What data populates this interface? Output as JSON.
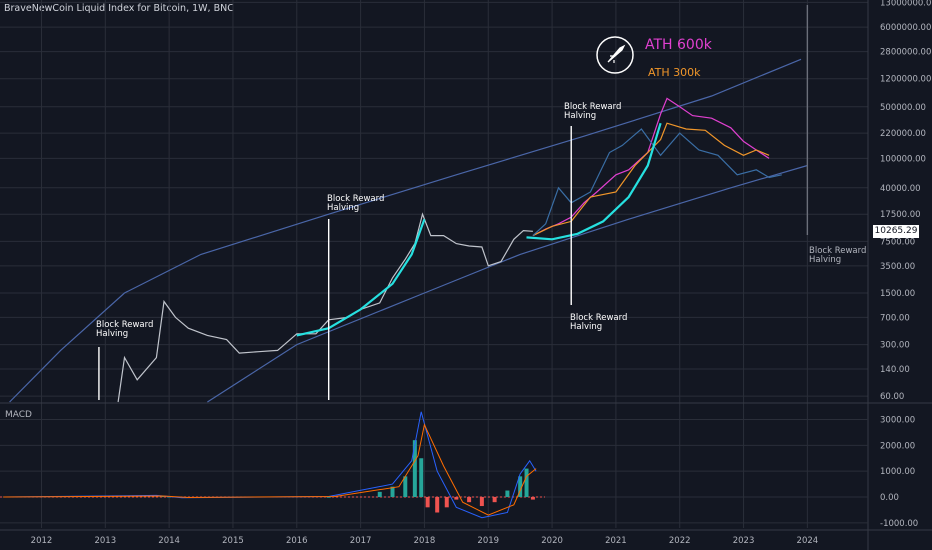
{
  "header": {
    "title": "BraveNewCoin Liquid Index for Bitcoin, 1W, BNC"
  },
  "indicator": {
    "label": "MACD"
  },
  "current_price": "10265.29",
  "colors": {
    "background": "#131722",
    "grid": "#2a2e39",
    "channel": "#4a66a8",
    "projection_pink": "#e040d0",
    "projection_orange": "#f0962a",
    "projection_blue": "#3a6ea5",
    "fit_curve": "#26e0e0",
    "macd_line": "#2962ff",
    "signal_line": "#ff6d00",
    "hist_up": "#26a69a",
    "hist_down": "#ef5350"
  },
  "annotations": [
    {
      "lines": [
        "Block Reward",
        "Halving"
      ],
      "year": 2012.9
    },
    {
      "lines": [
        "Block Reward",
        "Halving"
      ],
      "year": 2016.5
    },
    {
      "lines": [
        "Block Reward",
        "Halving"
      ],
      "year": 2020.3
    },
    {
      "lines": [
        "Block Reward",
        "Halving"
      ],
      "year": 2020.3
    },
    {
      "lines": [
        "Block Reward",
        "Halving"
      ],
      "year": 2024.0
    }
  ],
  "legend": {
    "ath_600k": "ATH 600k",
    "ath_300k": "ATH 300k",
    "icon": "rocket-icon"
  },
  "chart_data": [
    {
      "type": "line",
      "title": "BraveNewCoin Liquid Index for Bitcoin, 1W, BNC",
      "xlabel": "",
      "ylabel": "",
      "scale": "log",
      "x_ticks": [
        "2012",
        "2013",
        "2014",
        "2015",
        "2016",
        "2017",
        "2018",
        "2019",
        "2020",
        "2021",
        "2022",
        "2023",
        "2024"
      ],
      "y_ticks": [
        "60.00",
        "140.00",
        "300.00",
        "700.00",
        "1500.00",
        "3500.00",
        "7500.00",
        "17500.00",
        "40000.00",
        "100000.00",
        "220000.00",
        "500000.00",
        "1200000.00",
        "2800000.00",
        "6000000.00",
        "13000000.00"
      ],
      "ylim": [
        50,
        14000000
      ],
      "xlim": [
        2011.35,
        2024.95
      ],
      "grid": true,
      "series": [
        {
          "x": [
            2013.2,
            2013.3,
            2013.5,
            2013.8,
            2013.92,
            2014.1,
            2014.3,
            2014.6,
            2014.9,
            2015.1,
            2015.4,
            2015.7,
            2016.0,
            2016.3,
            2016.5,
            2016.8,
            2017.0,
            2017.3,
            2017.5,
            2017.7,
            2017.85,
            2017.97,
            2018.1,
            2018.3,
            2018.5,
            2018.7,
            2018.9,
            2019.0,
            2019.2,
            2019.4,
            2019.55,
            2019.7
          ],
          "values": [
            50,
            200,
            100,
            200,
            1150,
            700,
            500,
            400,
            350,
            230,
            240,
            250,
            420,
            420,
            650,
            700,
            900,
            1100,
            2400,
            4300,
            7000,
            17500,
            9000,
            9000,
            7000,
            6500,
            6300,
            3500,
            4000,
            8000,
            10500,
            10265
          ]
        },
        {
          "x": [
            2019.7,
            2019.9,
            2020.1,
            2020.3,
            2020.5,
            2020.7,
            2021.0,
            2021.2,
            2021.5,
            2021.7,
            2021.8,
            2022.0,
            2022.2,
            2022.5,
            2022.8,
            2023.0,
            2023.2,
            2023.4
          ],
          "values": [
            9000,
            11000,
            13000,
            16000,
            25000,
            35000,
            60000,
            70000,
            120000,
            400000,
            650000,
            500000,
            380000,
            350000,
            260000,
            170000,
            130000,
            100000
          ]
        },
        {
          "x": [
            2019.7,
            2020.0,
            2020.3,
            2020.6,
            2021.0,
            2021.3,
            2021.7,
            2021.8,
            2022.1,
            2022.4,
            2022.7,
            2023.0,
            2023.2,
            2023.4
          ],
          "values": [
            9000,
            12000,
            14000,
            30000,
            35000,
            80000,
            180000,
            300000,
            250000,
            240000,
            150000,
            110000,
            130000,
            110000
          ]
        },
        {
          "x": [
            2019.7,
            2019.9,
            2020.1,
            2020.3,
            2020.6,
            2020.9,
            2021.1,
            2021.4,
            2021.7,
            2022.0,
            2022.3,
            2022.6,
            2022.9,
            2023.2,
            2023.4,
            2023.6
          ],
          "values": [
            9000,
            13000,
            40000,
            25000,
            35000,
            120000,
            150000,
            250000,
            110000,
            220000,
            130000,
            110000,
            60000,
            70000,
            55000,
            60000
          ]
        },
        {
          "x": [
            2016.0,
            2016.5,
            2017.0,
            2017.5,
            2017.8,
            2018.0
          ],
          "values": [
            400,
            500,
            900,
            2000,
            5000,
            15000
          ]
        },
        {
          "x": [
            2019.6,
            2020.0,
            2020.4,
            2020.8,
            2021.2,
            2021.5,
            2021.7
          ],
          "values": [
            8500,
            8000,
            9500,
            14000,
            30000,
            80000,
            300000
          ]
        }
      ]
    },
    {
      "type": "bar",
      "title": "MACD",
      "y_ticks": [
        "3000.00",
        "2000.00",
        "1000.00",
        "0.00",
        "-1000.00"
      ],
      "ylim": [
        -1200,
        3600
      ],
      "series": [
        {
          "x": [
            2013.9,
            2014.0,
            2014.2,
            2016.5,
            2017.3,
            2017.5,
            2017.7,
            2017.85,
            2017.95,
            2018.05,
            2018.2,
            2018.35,
            2018.5,
            2018.7,
            2018.9,
            2019.1,
            2019.3,
            2019.5,
            2019.6,
            2019.7
          ],
          "values": [
            40,
            20,
            -20,
            10,
            200,
            400,
            800,
            2200,
            1500,
            -400,
            -600,
            -400,
            -100,
            -200,
            -350,
            -200,
            250,
            800,
            1100,
            -100
          ]
        }
      ]
    }
  ]
}
